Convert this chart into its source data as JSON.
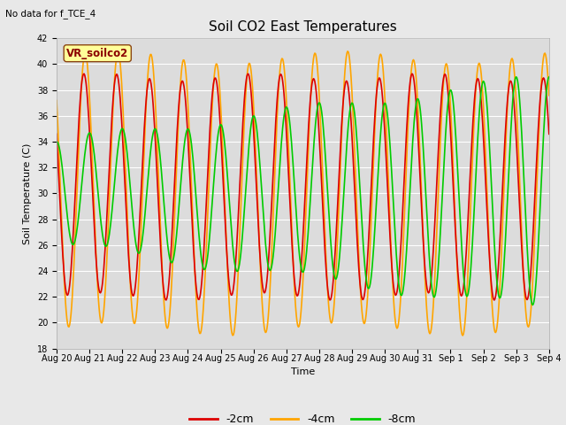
{
  "title": "Soil CO2 East Temperatures",
  "top_left_text": "No data for f_TCE_4",
  "ylabel": "Soil Temperature (C)",
  "xlabel": "Time",
  "legend_label": "VR_soilco2",
  "ylim": [
    18,
    42
  ],
  "yticks": [
    18,
    20,
    22,
    24,
    26,
    28,
    30,
    32,
    34,
    36,
    38,
    40,
    42
  ],
  "series": {
    "2cm": {
      "color": "#DD0000",
      "label": "-2cm"
    },
    "4cm": {
      "color": "#FFA500",
      "label": "-4cm"
    },
    "8cm": {
      "color": "#00CC00",
      "label": "-8cm"
    }
  },
  "x_tick_labels": [
    "Aug 20",
    "Aug 21",
    "Aug 22",
    "Aug 23",
    "Aug 24",
    "Aug 25",
    "Aug 26",
    "Aug 27",
    "Aug 28",
    "Aug 29",
    "Aug 30",
    "Aug 31",
    "Sep 1",
    "Sep 2",
    "Sep 3",
    "Sep 4"
  ],
  "bg_color": "#E8E8E8",
  "ax_bg_color": "#DCDCDC",
  "grid_color": "#FFFFFF",
  "title_fontsize": 11,
  "axis_fontsize": 8,
  "tick_fontsize": 7,
  "linewidth": 1.2,
  "n_days": 15,
  "pts_per_day": 48
}
